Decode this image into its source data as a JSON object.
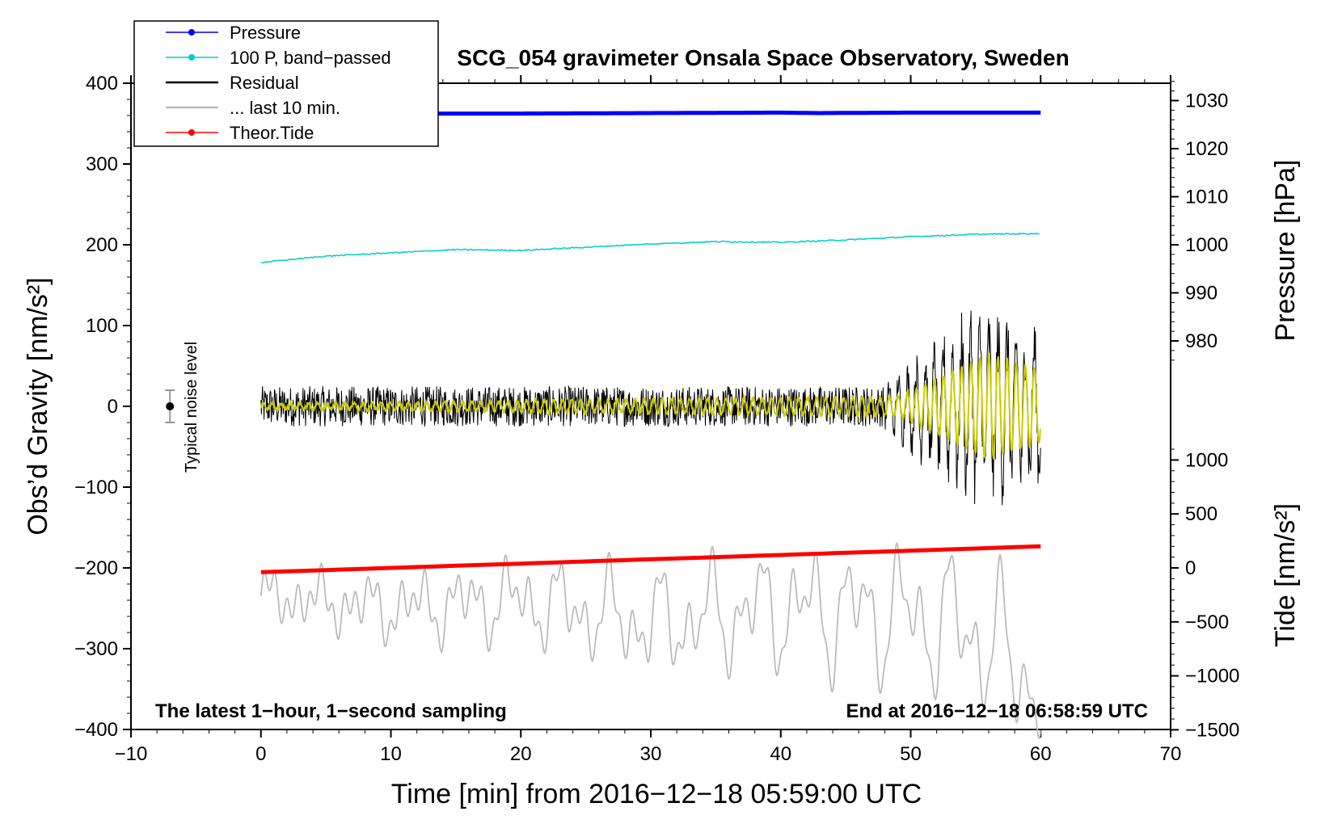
{
  "chart_data": {
    "type": "line",
    "title": "SCG_054 gravimeter Onsala Space Observatory, Sweden",
    "xlabel": "Time [min] from 2016−12−18 05:59:00 UTC",
    "ylabel_left": "Obs’d Gravity [nm/s²]",
    "ylabel_right_pressure": "Pressure [hPa]",
    "ylabel_right_tide": "Tide [nm/s²]",
    "xlim": [
      -10,
      70
    ],
    "ylim": [
      -400,
      400
    ],
    "x_ticks": [
      -10,
      0,
      10,
      20,
      30,
      40,
      50,
      60,
      70
    ],
    "x_tick_labels": [
      "−10",
      "0",
      "10",
      "20",
      "30",
      "40",
      "50",
      "60",
      "70"
    ],
    "y_ticks": [
      400,
      300,
      200,
      100,
      0,
      -100,
      -200,
      -300,
      -400
    ],
    "y_tick_labels": [
      "400",
      "300",
      "200",
      "100",
      "0",
      "−100",
      "−200",
      "−300",
      "−400"
    ],
    "pressure_axis": {
      "ticks": [
        1030,
        1020,
        1010,
        1000,
        990,
        980
      ],
      "tick_labels": [
        "1030",
        "1020",
        "1010",
        "1000",
        "990",
        "980"
      ],
      "left_value_at_1000": 200,
      "left_per_hpa": 5.95
    },
    "tide_axis": {
      "ticks": [
        1000,
        500,
        0,
        -500,
        -1000,
        -1500
      ],
      "tick_labels": [
        "1000",
        "500",
        "0",
        "−500",
        "−1000",
        "−1500"
      ],
      "left_value_at_0": -200,
      "left_per_unit": 0.1336
    },
    "legend": {
      "position": "top-left",
      "entries": [
        {
          "label": "Pressure",
          "color": "#0000ff",
          "marker": true
        },
        {
          "label": "100 P, band−passed",
          "color": "#00cccc",
          "marker": true
        },
        {
          "label": "Residual",
          "color": "#000000",
          "marker": false
        },
        {
          "label": "... last 10 min.",
          "color": "#bbbbbb",
          "marker": false
        },
        {
          "label": "Theor.Tide",
          "color": "#ff0000",
          "marker": true
        }
      ]
    },
    "series": [
      {
        "name": "Pressure",
        "color": "#0000ff",
        "x": [
          0,
          10,
          20,
          30,
          40,
          43,
          50,
          60
        ],
        "y": [
          1027.2,
          1027.3,
          1027.3,
          1027.4,
          1027.5,
          1027.4,
          1027.5,
          1027.5
        ]
      },
      {
        "name": "100 P, band−passed",
        "color": "#00cccc",
        "x": [
          0,
          5,
          10,
          15,
          20,
          25,
          30,
          35,
          40,
          45,
          50,
          55,
          60
        ],
        "y": [
          178,
          186,
          190,
          194,
          193,
          197,
          201,
          204,
          203,
          206,
          210,
          213,
          214
        ]
      },
      {
        "name": "Theor.Tide",
        "color": "#ff0000",
        "x": [
          0,
          60
        ],
        "y": [
          -40,
          200
        ]
      },
      {
        "name": "Residual",
        "color": "#000000",
        "x": [
          0,
          48,
          55,
          60
        ],
        "amplitude": [
          25,
          25,
          110,
          90
        ]
      },
      {
        "name": "Residual smoothed",
        "color": "#cccc00",
        "x": [
          0,
          49,
          56,
          60
        ],
        "amplitude": [
          3,
          12,
          65,
          45
        ]
      },
      {
        "name": "... last 10 min.",
        "color": "#bbbbbb",
        "x": [
          0,
          10,
          20,
          30,
          40,
          50,
          55,
          60
        ],
        "y": [
          -235,
          -250,
          -240,
          -270,
          -250,
          -260,
          -280,
          -345
        ]
      }
    ],
    "annotations": {
      "left": "The latest 1−hour, 1−second sampling",
      "right": "End at 2016−12−18 06:58:59 UTC",
      "noise": "Typical noise level",
      "noise_marker": {
        "x": -7,
        "y": 0,
        "err": 20
      }
    }
  }
}
